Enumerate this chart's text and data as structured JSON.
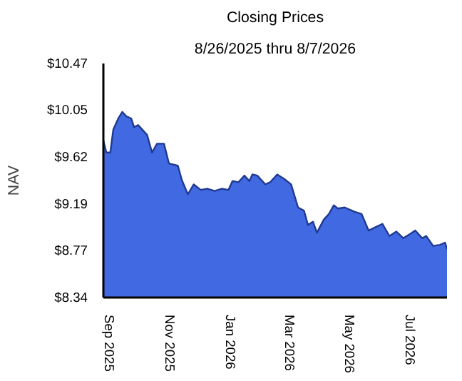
{
  "chart_data": {
    "type": "area",
    "title": "Closing Prices",
    "subtitle": "8/26/2025 thru 8/7/2026",
    "ylabel": "NAV",
    "x": [
      "2025-08-26",
      "2025-08-29",
      "2025-09-02",
      "2025-09-05",
      "2025-09-10",
      "2025-09-14",
      "2025-09-18",
      "2025-09-23",
      "2025-09-26",
      "2025-09-30",
      "2025-10-04",
      "2025-10-09",
      "2025-10-14",
      "2025-10-19",
      "2025-10-26",
      "2025-10-31",
      "2025-11-09",
      "2025-11-13",
      "2025-11-19",
      "2025-11-25",
      "2025-12-02",
      "2025-12-09",
      "2025-12-16",
      "2025-12-23",
      "2025-12-30",
      "2026-01-03",
      "2026-01-09",
      "2026-01-15",
      "2026-01-20",
      "2026-01-23",
      "2026-01-28",
      "2026-02-05",
      "2026-02-10",
      "2026-02-17",
      "2026-02-24",
      "2026-03-03",
      "2026-03-10",
      "2026-03-16",
      "2026-03-20",
      "2026-03-25",
      "2026-03-29",
      "2026-04-05",
      "2026-04-10",
      "2026-04-15",
      "2026-04-19",
      "2026-04-26",
      "2026-05-06",
      "2026-05-13",
      "2026-05-20",
      "2026-05-27",
      "2026-06-03",
      "2026-06-10",
      "2026-06-17",
      "2026-06-24",
      "2026-07-01",
      "2026-07-06",
      "2026-07-13",
      "2026-07-17",
      "2026-07-24",
      "2026-07-31",
      "2026-08-05",
      "2026-08-07"
    ],
    "series": [
      {
        "color": "#4169e1",
        "values": [
          9.77,
          9.66,
          9.66,
          9.87,
          9.97,
          10.03,
          9.99,
          9.97,
          9.89,
          9.91,
          9.87,
          9.82,
          9.66,
          9.74,
          9.74,
          9.56,
          9.54,
          9.41,
          9.28,
          9.37,
          9.32,
          9.33,
          9.31,
          9.33,
          9.32,
          9.4,
          9.39,
          9.45,
          9.4,
          9.46,
          9.45,
          9.37,
          9.39,
          9.46,
          9.42,
          9.37,
          9.16,
          9.13,
          9.0,
          9.03,
          8.93,
          9.05,
          9.1,
          9.18,
          9.15,
          9.16,
          9.12,
          9.1,
          8.95,
          8.98,
          9.01,
          8.9,
          8.94,
          8.88,
          8.92,
          8.95,
          8.88,
          8.9,
          8.81,
          8.82,
          8.84,
          8.78
        ]
      }
    ],
    "xlim": [
      "2025-08-26",
      "2026-08-07"
    ],
    "xticks": [
      {
        "value": "2025-09-01",
        "label": "Sep  2025"
      },
      {
        "value": "2025-11-01",
        "label": "Nov  2025"
      },
      {
        "value": "2026-01-01",
        "label": "Jan  2026"
      },
      {
        "value": "2026-03-01",
        "label": "Mar  2026"
      },
      {
        "value": "2026-05-01",
        "label": "May  2026"
      },
      {
        "value": "2026-07-01",
        "label": "Jul  2026"
      }
    ],
    "ylim": [
      8.34,
      10.47
    ],
    "yticks": [
      {
        "value": 8.34,
        "label": "$8.34"
      },
      {
        "value": 8.77,
        "label": "$8.77"
      },
      {
        "value": 9.19,
        "label": "$9.19"
      },
      {
        "value": 9.62,
        "label": "$9.62"
      },
      {
        "value": 10.05,
        "label": "$10.05"
      },
      {
        "value": 10.47,
        "label": "$10.47"
      }
    ],
    "grid": false
  }
}
